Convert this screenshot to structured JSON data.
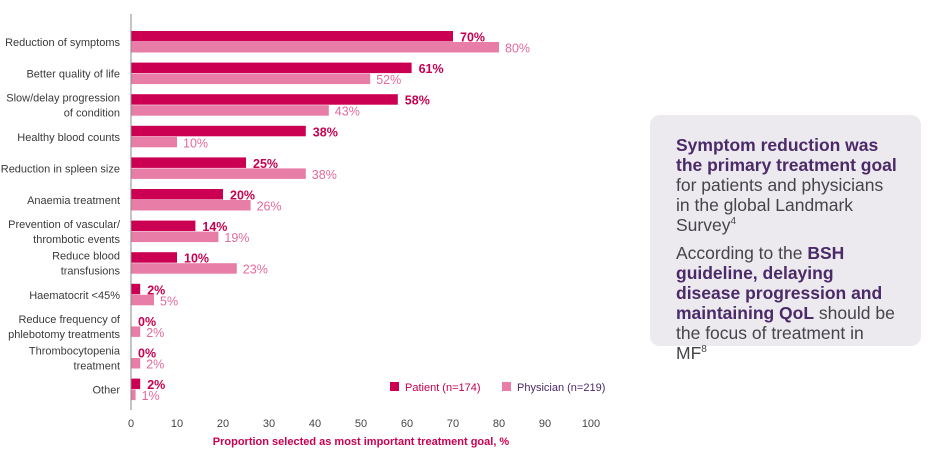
{
  "chart_data": {
    "type": "bar",
    "orientation": "horizontal",
    "categories": [
      "Reduction of symptoms",
      "Better quality of life",
      "Slow/delay progression\nof condition",
      "Healthy blood counts",
      "Reduction in spleen size",
      "Anaemia treatment",
      "Prevention of vascular/\nthrombotic events",
      "Reduce blood\ntransfusions",
      "Haematocrit <45%",
      "Reduce frequency of\nphlebotomy treatments",
      "Thrombocytopenia\ntreatment",
      "Other"
    ],
    "series": [
      {
        "name": "Patient (n=174)",
        "color": "#cc0052",
        "values": [
          70,
          61,
          58,
          38,
          25,
          20,
          14,
          10,
          2,
          0,
          0,
          2
        ]
      },
      {
        "name": "Physician (n=219)",
        "color": "#e87ea8",
        "values": [
          80,
          52,
          43,
          10,
          38,
          26,
          19,
          23,
          5,
          2,
          2,
          1
        ]
      }
    ],
    "xlabel": "Proportion selected as most important treatment goal, %",
    "xlim": [
      0,
      100
    ],
    "xticks": [
      0,
      10,
      20,
      30,
      40,
      50,
      60,
      70,
      80,
      90,
      100
    ],
    "value_suffix": "%",
    "legend_position": "bottom-right",
    "grid": false
  },
  "callout": {
    "p1_bold": "Symptom reduction was the primary treatment goal",
    "p1_text": " for patients and physicians in the global Landmark Survey",
    "p1_sup": "4",
    "p2_text1": "According to the ",
    "p2_bold": "BSH guideline, delaying disease progression and maintaining QoL",
    "p2_text2": " should be the focus of treatment in MF",
    "p2_sup": "8"
  }
}
